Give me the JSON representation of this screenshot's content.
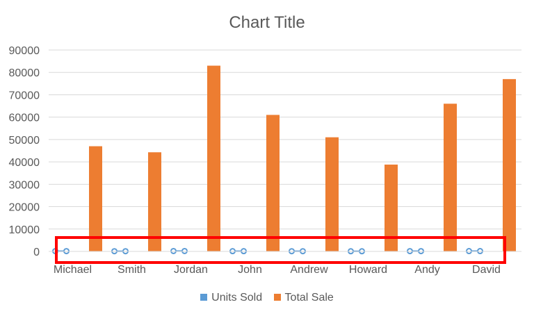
{
  "chart_data": {
    "type": "bar",
    "title": "Chart Title",
    "categories": [
      "Michael",
      "Smith",
      "Jordan",
      "John",
      "Andrew",
      "Howard",
      "Andy",
      "David"
    ],
    "series": [
      {
        "name": "Units Sold",
        "type": "line",
        "color": "#5B9BD5",
        "marker": "circle-hollow",
        "values": [
          120,
          85,
          160,
          110,
          95,
          70,
          125,
          140
        ]
      },
      {
        "name": "Total Sale",
        "type": "bar",
        "color": "#ED7D31",
        "values": [
          47000,
          44300,
          83000,
          61000,
          51000,
          38800,
          66000,
          77000
        ]
      }
    ],
    "ylim": [
      0,
      90000
    ],
    "yticks": [
      "0",
      "10000",
      "20000",
      "30000",
      "40000",
      "50000",
      "60000",
      "70000",
      "80000",
      "90000"
    ],
    "grid": true,
    "legend_position": "bottom",
    "annotation": {
      "type": "highlight-rectangle",
      "color": "#FF0000",
      "target": "Units Sold"
    }
  }
}
